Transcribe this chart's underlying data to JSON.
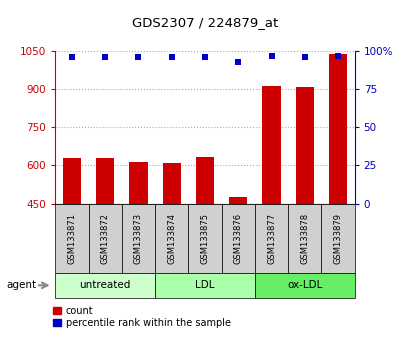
{
  "title": "GDS2307 / 224879_at",
  "samples": [
    "GSM133871",
    "GSM133872",
    "GSM133873",
    "GSM133874",
    "GSM133875",
    "GSM133876",
    "GSM133877",
    "GSM133878",
    "GSM133879"
  ],
  "counts": [
    630,
    630,
    615,
    610,
    635,
    475,
    915,
    910,
    1040
  ],
  "percentiles": [
    96,
    96,
    96,
    96,
    96,
    93,
    97,
    96,
    97
  ],
  "ylim_left": [
    450,
    1050
  ],
  "ylim_right": [
    0,
    100
  ],
  "yticks_left": [
    450,
    600,
    750,
    900,
    1050
  ],
  "yticks_right": [
    0,
    25,
    50,
    75,
    100
  ],
  "bar_color": "#cc0000",
  "dot_color": "#0000cc",
  "bar_width": 0.55,
  "groups": [
    {
      "label": "untreated",
      "start": 0,
      "end": 3,
      "color": "#ccffcc"
    },
    {
      "label": "LDL",
      "start": 3,
      "end": 6,
      "color": "#aaffaa"
    },
    {
      "label": "ox-LDL",
      "start": 6,
      "end": 9,
      "color": "#66ee66"
    }
  ],
  "agent_label": "agent",
  "legend_count_label": "count",
  "legend_pct_label": "percentile rank within the sample",
  "grid_color": "#aaaaaa",
  "tick_color_left": "#cc0000",
  "tick_color_right": "#0000cc",
  "background_color": "#ffffff",
  "plot_bg_color": "#ffffff",
  "sample_box_color": "#d0d0d0"
}
